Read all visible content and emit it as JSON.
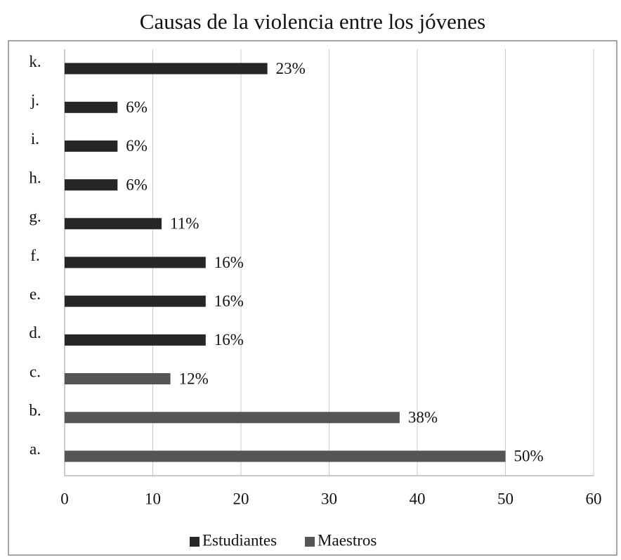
{
  "chart_data": {
    "type": "hbar",
    "title": "Causas de la violencia entre los jóvenes",
    "categories": [
      "a.",
      "b.",
      "c.",
      "d.",
      "e.",
      "f.",
      "g.",
      "h.",
      "i.",
      "j.",
      "k."
    ],
    "series": [
      {
        "name": "Estudiantes",
        "color": "#262626",
        "values": [
          null,
          null,
          null,
          16,
          16,
          16,
          11,
          6,
          6,
          6,
          23
        ],
        "value_labels": [
          null,
          null,
          null,
          "16%",
          "16%",
          "16%",
          "11%",
          "6%",
          "6%",
          "6%",
          "23%"
        ]
      },
      {
        "name": "Maestros",
        "color": "#555555",
        "values": [
          50,
          38,
          12,
          null,
          null,
          null,
          null,
          null,
          null,
          null,
          null
        ],
        "value_labels": [
          "50%",
          "38%",
          "12%",
          null,
          null,
          null,
          null,
          null,
          null,
          null,
          null
        ]
      }
    ],
    "xlim": [
      0,
      60
    ],
    "xticks": [
      0,
      10,
      20,
      30,
      40,
      50,
      60
    ],
    "grid": true,
    "legend": "bottom"
  }
}
